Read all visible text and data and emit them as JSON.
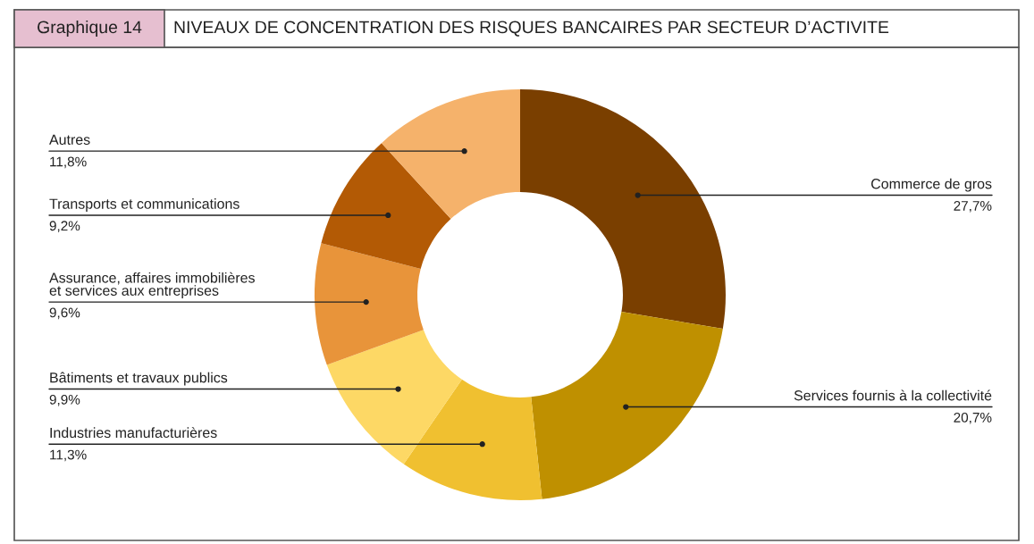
{
  "chart_data": {
    "type": "donut",
    "title": "NIVEAUX DE CONCENTRATION DES RISQUES BANCAIRES PAR SECTEUR D’ACTIVITE",
    "annotations": [
      "Graphique 14"
    ],
    "categories": [
      "Commerce de gros",
      "Services fournis à la collectivité",
      "Industries manufacturières",
      "Bâtiments et travaux publics",
      "Assurance, affaires immobilières\net services aux entreprises",
      "Transports et communications",
      "Autres"
    ],
    "values": [
      27.7,
      20.7,
      11.3,
      9.9,
      9.6,
      9.2,
      11.8
    ],
    "value_labels": [
      "27,7%",
      "20,7%",
      "11,3%",
      "9,9%",
      "9,6%",
      "9,2%",
      "11,8%"
    ],
    "colors": [
      "#7a3f00",
      "#bf9000",
      "#f0c030",
      "#fdd865",
      "#e8943a",
      "#b35a05",
      "#f5b26b"
    ],
    "legend": false
  }
}
